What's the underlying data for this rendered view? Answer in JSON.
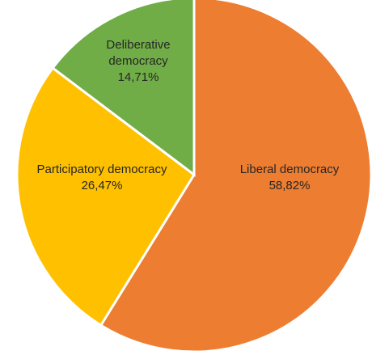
{
  "chart_data": {
    "type": "pie",
    "title": "",
    "slices": [
      {
        "name": "Liberal democracy",
        "value": 58.82,
        "value_label": "58,82%",
        "color": "#ED7D31"
      },
      {
        "name": "Participatory democracy",
        "value": 26.47,
        "value_label": "26,47%",
        "color": "#FFC000"
      },
      {
        "name": "Deliberative democracy",
        "value": 14.71,
        "value_label": "14,71%",
        "color": "#70AD47"
      }
    ],
    "start_angle_deg": 0,
    "direction": "clockwise",
    "data_labels": "inside",
    "legend": "none"
  }
}
